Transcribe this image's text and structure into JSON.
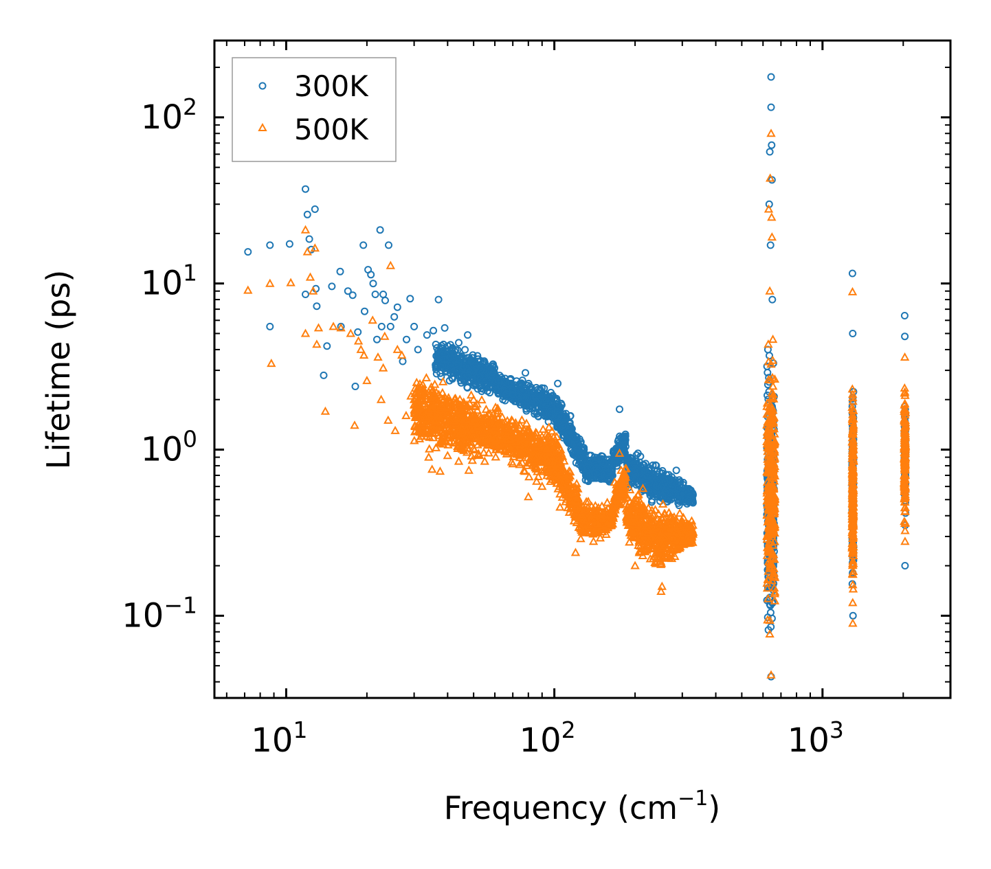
{
  "chart_data": {
    "type": "scatter",
    "title": "",
    "xlabel": "Frequency (cm",
    "xlabel_sup": "−1",
    "xlabel_suffix": ")",
    "ylabel": "Lifetime (ps)",
    "xscale": "log",
    "yscale": "log",
    "xlim": [
      5.4,
      3000
    ],
    "ylim": [
      0.032,
      290
    ],
    "legend_position": "top-left",
    "x_ticks": [
      {
        "value": 10,
        "base": "10",
        "exp": "1"
      },
      {
        "value": 100,
        "base": "10",
        "exp": "2"
      },
      {
        "value": 1000,
        "base": "10",
        "exp": "3"
      }
    ],
    "y_ticks": [
      {
        "value": 0.1,
        "base": "10",
        "exp": "−1"
      },
      {
        "value": 1,
        "base": "10",
        "exp": "0"
      },
      {
        "value": 10,
        "base": "10",
        "exp": "1"
      },
      {
        "value": 100,
        "base": "10",
        "exp": "2"
      }
    ],
    "series": [
      {
        "name": "300K",
        "marker": "circle",
        "color": "#1f77b4",
        "points": [
          [
            7.2,
            15.5
          ],
          [
            8.7,
            17.0
          ],
          [
            8.7,
            5.5
          ],
          [
            10.3,
            17.3
          ],
          [
            11.8,
            37.0
          ],
          [
            11.8,
            8.6
          ],
          [
            12.0,
            26.0
          ],
          [
            12.2,
            18.5
          ],
          [
            12.4,
            16.0
          ],
          [
            12.8,
            28.0
          ],
          [
            12.9,
            9.3
          ],
          [
            13.0,
            7.3
          ],
          [
            13.8,
            2.8
          ],
          [
            14.2,
            4.2
          ],
          [
            14.8,
            9.6
          ],
          [
            15.9,
            11.8
          ],
          [
            16.0,
            5.5
          ],
          [
            17.0,
            9.0
          ],
          [
            17.7,
            8.5
          ],
          [
            18.1,
            2.4
          ],
          [
            18.5,
            5.1
          ],
          [
            19.4,
            17.0
          ],
          [
            19.6,
            6.8
          ],
          [
            20.2,
            12.1
          ],
          [
            20.7,
            11.3
          ],
          [
            21.1,
            10.0
          ],
          [
            21.5,
            8.6
          ],
          [
            21.8,
            4.6
          ],
          [
            22.4,
            21.0
          ],
          [
            22.7,
            5.5
          ],
          [
            23.0,
            8.6
          ],
          [
            23.4,
            7.9
          ],
          [
            24.1,
            17.0
          ],
          [
            24.5,
            5.5
          ],
          [
            25.3,
            6.3
          ],
          [
            26.0,
            7.2
          ],
          [
            27.2,
            3.4
          ],
          [
            28.1,
            4.6
          ],
          [
            29.0,
            8.1
          ],
          [
            30.0,
            5.5
          ],
          [
            31.0,
            4.0
          ],
          [
            33.5,
            4.9
          ],
          [
            35.4,
            5.2
          ],
          [
            37.0,
            8.0
          ],
          [
            39.0,
            5.4
          ],
          [
            41.0,
            3.6
          ],
          [
            44.0,
            4.4
          ],
          [
            47.5,
            4.9
          ],
          [
            51.0,
            3.1
          ],
          [
            55.0,
            2.8
          ],
          [
            62.0,
            2.6
          ],
          [
            70.0,
            2.3
          ],
          [
            78.0,
            2.9
          ],
          [
            87.0,
            2.3
          ],
          [
            103.0,
            2.5
          ],
          [
            120.0,
            1.2
          ],
          [
            150.0,
            0.88
          ],
          [
            175.0,
            1.75
          ],
          [
            205.0,
            0.95
          ],
          [
            240.0,
            0.8
          ],
          [
            285.0,
            0.75
          ],
          [
            320.0,
            0.52
          ],
          [
            626.0,
            4.0
          ],
          [
            633.0,
            30.0
          ],
          [
            636.0,
            62.0
          ],
          [
            640.0,
            17.0
          ],
          [
            643.0,
            175.0
          ],
          [
            643.0,
            115.0
          ],
          [
            646.0,
            68.0
          ],
          [
            648.0,
            42.0
          ],
          [
            650.0,
            8.0
          ],
          [
            638.0,
            1.2
          ],
          [
            640.0,
            0.3
          ],
          [
            643.0,
            0.043
          ],
          [
            1293.0,
            11.5
          ],
          [
            1296.0,
            5.0
          ],
          [
            1299.0,
            0.1
          ],
          [
            2025.0,
            6.4
          ],
          [
            2028.0,
            4.8
          ],
          [
            2031.0,
            0.2
          ]
        ],
        "bands": [
          {
            "x": [
              36,
              60
            ],
            "y_low": [
              2.6,
              2.0
            ],
            "y_high": [
              5.0,
              3.6
            ]
          },
          {
            "x": [
              60,
              100
            ],
            "y_low": [
              2.0,
              1.3
            ],
            "y_high": [
              3.0,
              2.4
            ]
          },
          {
            "x": [
              100,
              130
            ],
            "y_low": [
              1.3,
              0.6
            ],
            "y_high": [
              2.4,
              1.2
            ]
          },
          {
            "x": [
              130,
              165
            ],
            "y_low": [
              0.6,
              0.6
            ],
            "y_high": [
              1.0,
              0.95
            ]
          },
          {
            "x": [
              165,
              185
            ],
            "y_low": [
              0.7,
              0.8
            ],
            "y_high": [
              1.1,
              1.5
            ]
          },
          {
            "x": [
              185,
              240
            ],
            "y_low": [
              0.55,
              0.45
            ],
            "y_high": [
              1.1,
              0.85
            ]
          },
          {
            "x": [
              240,
              330
            ],
            "y_low": [
              0.45,
              0.45
            ],
            "y_high": [
              0.85,
              0.6
            ]
          },
          {
            "x": [
              620,
              660
            ],
            "y_low": [
              0.05,
              0.05
            ],
            "y_high": [
              5.0,
              5.0
            ]
          },
          {
            "x": [
              1290,
              1305
            ],
            "y_low": [
              0.11,
              0.11
            ],
            "y_high": [
              3.2,
              3.2
            ]
          },
          {
            "x": [
              2020,
              2040
            ],
            "y_low": [
              0.3,
              0.3
            ],
            "y_high": [
              2.7,
              2.7
            ]
          }
        ]
      },
      {
        "name": "500K",
        "marker": "triangle",
        "color": "#ff7f0e",
        "points": [
          [
            7.2,
            9.1
          ],
          [
            8.7,
            10.0
          ],
          [
            8.8,
            3.3
          ],
          [
            10.4,
            10.1
          ],
          [
            11.8,
            21.0
          ],
          [
            11.8,
            5.0
          ],
          [
            12.0,
            15.5
          ],
          [
            12.3,
            10.9
          ],
          [
            12.6,
            9.0
          ],
          [
            12.8,
            16.3
          ],
          [
            13.0,
            4.3
          ],
          [
            13.2,
            5.4
          ],
          [
            14.0,
            1.7
          ],
          [
            15.0,
            5.5
          ],
          [
            16.0,
            5.4
          ],
          [
            17.4,
            5.0
          ],
          [
            18.0,
            1.4
          ],
          [
            18.6,
            4.5
          ],
          [
            19.0,
            4.0
          ],
          [
            19.5,
            3.7
          ],
          [
            20.0,
            2.6
          ],
          [
            21.0,
            6.0
          ],
          [
            22.0,
            3.6
          ],
          [
            22.6,
            2.0
          ],
          [
            23.0,
            3.1
          ],
          [
            23.3,
            4.8
          ],
          [
            24.0,
            1.5
          ],
          [
            24.5,
            12.8
          ],
          [
            25.5,
            1.3
          ],
          [
            26.0,
            4.0
          ],
          [
            27.0,
            3.7
          ],
          [
            28.0,
            1.6
          ],
          [
            29.2,
            2.1
          ],
          [
            30.0,
            2.0
          ],
          [
            32.0,
            1.2
          ],
          [
            34.0,
            0.9
          ],
          [
            35.0,
            0.76
          ],
          [
            37.5,
            0.74
          ],
          [
            40.0,
            0.92
          ],
          [
            44.0,
            0.85
          ],
          [
            48.0,
            0.75
          ],
          [
            55.0,
            0.85
          ],
          [
            70.0,
            0.82
          ],
          [
            80.0,
            0.52
          ],
          [
            90.0,
            0.6
          ],
          [
            105.0,
            0.45
          ],
          [
            120.0,
            0.24
          ],
          [
            130.0,
            0.33
          ],
          [
            140.0,
            0.28
          ],
          [
            175.0,
            0.95
          ],
          [
            200.0,
            0.2
          ],
          [
            228.0,
            0.22
          ],
          [
            250.0,
            0.14
          ],
          [
            252.0,
            0.15
          ],
          [
            300.0,
            0.3
          ],
          [
            630.0,
            28.0
          ],
          [
            638.0,
            43.0
          ],
          [
            643.0,
            80.0
          ],
          [
            646.0,
            25.0
          ],
          [
            648.0,
            19.0
          ],
          [
            636.0,
            9.0
          ],
          [
            640.0,
            0.4
          ],
          [
            643.0,
            0.044
          ],
          [
            1294.0,
            8.9
          ],
          [
            1297.0,
            0.09
          ],
          [
            2027.0,
            3.6
          ],
          [
            2031.0,
            0.28
          ]
        ],
        "bands": [
          {
            "x": [
              30,
              40
            ],
            "y_low": [
              0.9,
              0.9
            ],
            "y_high": [
              3.2,
              2.8
            ]
          },
          {
            "x": [
              40,
              60
            ],
            "y_low": [
              0.75,
              0.85
            ],
            "y_high": [
              2.8,
              1.9
            ]
          },
          {
            "x": [
              60,
              100
            ],
            "y_low": [
              0.85,
              0.55
            ],
            "y_high": [
              1.9,
              1.4
            ]
          },
          {
            "x": [
              100,
              125
            ],
            "y_low": [
              0.55,
              0.27
            ],
            "y_high": [
              1.4,
              0.6
            ]
          },
          {
            "x": [
              125,
              165
            ],
            "y_low": [
              0.26,
              0.29
            ],
            "y_high": [
              0.55,
              0.5
            ]
          },
          {
            "x": [
              165,
              185
            ],
            "y_low": [
              0.32,
              0.5
            ],
            "y_high": [
              0.6,
              0.95
            ]
          },
          {
            "x": [
              185,
              250
            ],
            "y_low": [
              0.25,
              0.16
            ],
            "y_high": [
              0.7,
              0.5
            ]
          },
          {
            "x": [
              250,
              330
            ],
            "y_low": [
              0.18,
              0.26
            ],
            "y_high": [
              0.5,
              0.4
            ]
          },
          {
            "x": [
              620,
              665
            ],
            "y_low": [
              0.05,
              0.05
            ],
            "y_high": [
              6.0,
              6.0
            ]
          },
          {
            "x": [
              1290,
              1305
            ],
            "y_low": [
              0.1,
              0.1
            ],
            "y_high": [
              3.2,
              3.2
            ]
          },
          {
            "x": [
              2018,
              2040
            ],
            "y_low": [
              0.25,
              0.25
            ],
            "y_high": [
              3.0,
              3.0
            ]
          }
        ]
      }
    ]
  }
}
